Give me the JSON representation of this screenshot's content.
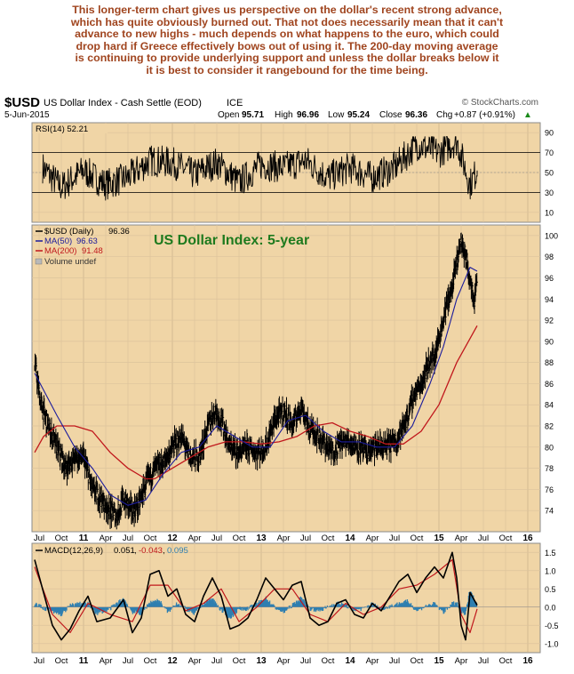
{
  "commentary": {
    "lines": [
      "This longer-term chart gives us perspective on the dollar's recent strong advance,",
      "which has quite obviously burned out. That not does necessarily mean that it can't",
      "advance to new highs - much depends on what happens to the euro, which could",
      "drop hard if Greece effectively bows out of using it. The 200-day moving average",
      "is continuing to provide underlying support and unless the dollar breaks below it",
      "it is best to consider it rangebound for the time being."
    ]
  },
  "colors": {
    "panel_bg": "#f0d5a6",
    "rsi_line": "#000000",
    "price_bars": "#000000",
    "ma50": "#1c1c9c",
    "ma200": "#c0171c",
    "title_green": "#1e7a1e",
    "macd_line": "#000000",
    "macd_signal": "#c0171c",
    "macd_hist": "#2f7fb0",
    "commentary": "#a0451f"
  },
  "header": {
    "symbol": "$USD",
    "name": "US Dollar Index - Cash Settle (EOD)",
    "exchange": "ICE",
    "watermark": "© StockCharts.com",
    "date": "5-Jun-2015",
    "open_label": "Open",
    "open": "95.71",
    "high_label": "High",
    "high": "96.96",
    "low_label": "Low",
    "low": "95.24",
    "close_label": "Close",
    "close": "96.36",
    "chg_label": "Chg",
    "chg": "+0.87 (+0.91%)",
    "chg_arrow": "▲"
  },
  "chart_data": [
    {
      "type": "line",
      "name": "RSI",
      "legend": "RSI(14) 52.21",
      "ylim": [
        0,
        100
      ],
      "yticks": [
        10,
        30,
        50,
        70,
        90
      ],
      "reference_lines": [
        30,
        70
      ],
      "series": [
        {
          "name": "RSI(14)",
          "x": [
            2010.54,
            2010.75,
            2011.0,
            2011.25,
            2011.5,
            2011.75,
            2012.0,
            2012.25,
            2012.5,
            2012.75,
            2013.0,
            2013.25,
            2013.5,
            2013.75,
            2014.0,
            2014.25,
            2014.5,
            2014.75,
            2015.0,
            2015.2,
            2015.35,
            2015.43
          ],
          "values": [
            55,
            35,
            52,
            38,
            45,
            62,
            60,
            48,
            60,
            40,
            58,
            55,
            62,
            45,
            55,
            45,
            55,
            78,
            70,
            82,
            38,
            52
          ]
        }
      ]
    },
    {
      "type": "bar",
      "name": "Price",
      "title": "US Dollar Index: 5-year",
      "legend": [
        {
          "name": "$USD (Daily)",
          "value": "96.36"
        },
        {
          "name": "MA(50)",
          "value": "96.63"
        },
        {
          "name": "MA(200)",
          "value": "91.48"
        },
        {
          "name": "Volume undef",
          "value": ""
        }
      ],
      "ylim": [
        72,
        101
      ],
      "yticks": [
        74,
        76,
        78,
        80,
        82,
        84,
        86,
        88,
        90,
        92,
        94,
        96,
        98,
        100
      ],
      "series": [
        {
          "name": "$USD (Daily)",
          "x": [
            2010.45,
            2010.52,
            2010.6,
            2010.7,
            2010.8,
            2010.9,
            2011.0,
            2011.1,
            2011.2,
            2011.3,
            2011.37,
            2011.45,
            2011.55,
            2011.62,
            2011.7,
            2011.8,
            2011.9,
            2012.0,
            2012.1,
            2012.2,
            2012.3,
            2012.4,
            2012.48,
            2012.55,
            2012.65,
            2012.75,
            2012.85,
            2012.95,
            2013.05,
            2013.15,
            2013.25,
            2013.35,
            2013.45,
            2013.52,
            2013.6,
            2013.7,
            2013.8,
            2013.9,
            2014.0,
            2014.1,
            2014.2,
            2014.3,
            2014.4,
            2014.5,
            2014.58,
            2014.65,
            2014.72,
            2014.8,
            2014.88,
            2014.95,
            2015.02,
            2015.1,
            2015.15,
            2015.2,
            2015.25,
            2015.3,
            2015.35,
            2015.4,
            2015.43
          ],
          "values": [
            88,
            84,
            82,
            80,
            78,
            79,
            79,
            76,
            75,
            74,
            73.5,
            75,
            74,
            74.5,
            76.5,
            78,
            78.5,
            80,
            81,
            79,
            79,
            82,
            83.5,
            82.5,
            80,
            79.5,
            80,
            79.5,
            80,
            82.5,
            83.5,
            82,
            84,
            82,
            81.5,
            80.5,
            79.5,
            80.5,
            80.5,
            80,
            79.5,
            80,
            80,
            80.5,
            81.5,
            83,
            85,
            86,
            88,
            88.5,
            91,
            94,
            95,
            97.5,
            99.5,
            98,
            96,
            94,
            96.36
          ]
        },
        {
          "name": "MA(50)",
          "x": [
            2010.45,
            2010.7,
            2010.9,
            2011.1,
            2011.3,
            2011.5,
            2011.7,
            2011.9,
            2012.1,
            2012.3,
            2012.5,
            2012.7,
            2012.9,
            2013.1,
            2013.3,
            2013.5,
            2013.7,
            2013.9,
            2014.1,
            2014.3,
            2014.5,
            2014.7,
            2014.9,
            2015.05,
            2015.2,
            2015.35,
            2015.43
          ],
          "values": [
            87,
            83,
            80,
            78,
            75.5,
            74.5,
            75,
            77.5,
            79.5,
            80,
            82,
            81,
            80,
            80,
            82.5,
            83,
            81.5,
            80.5,
            80.5,
            80,
            80,
            82,
            86,
            89.5,
            94,
            97,
            96.63
          ]
        },
        {
          "name": "MA(200)",
          "x": [
            2010.45,
            2010.55,
            2010.7,
            2010.9,
            2011.1,
            2011.3,
            2011.5,
            2011.7,
            2011.8,
            2012.0,
            2012.2,
            2012.4,
            2012.6,
            2012.8,
            2013.0,
            2013.2,
            2013.4,
            2013.6,
            2013.8,
            2014.0,
            2014.2,
            2014.4,
            2014.6,
            2014.8,
            2015.0,
            2015.2,
            2015.43
          ],
          "values": [
            79.5,
            81,
            82,
            82,
            81.5,
            79.5,
            78,
            77,
            77,
            78,
            79,
            80,
            80.5,
            80.5,
            80.3,
            80.5,
            81,
            82,
            82.3,
            81.5,
            81,
            80.3,
            80.3,
            81.5,
            84,
            88,
            91.48
          ]
        }
      ]
    },
    {
      "type": "line",
      "name": "MACD",
      "legend": [
        {
          "name": "MACD(12,26,9)",
          "value": "0.051"
        },
        {
          "name": "",
          "value": "-0.043"
        },
        {
          "name": "",
          "value": "0.095"
        }
      ],
      "ylim": [
        -1.25,
        1.75
      ],
      "yticks": [
        -1.0,
        -0.5,
        0.0,
        0.5,
        1.0,
        1.5
      ],
      "series": [
        {
          "name": "MACD(12,26,9)",
          "x": [
            2010.45,
            2010.55,
            2010.65,
            2010.75,
            2010.85,
            2010.95,
            2011.05,
            2011.15,
            2011.3,
            2011.45,
            2011.55,
            2011.65,
            2011.75,
            2011.85,
            2011.95,
            2012.05,
            2012.15,
            2012.25,
            2012.35,
            2012.45,
            2012.55,
            2012.65,
            2012.75,
            2012.85,
            2012.95,
            2013.05,
            2013.15,
            2013.25,
            2013.35,
            2013.45,
            2013.55,
            2013.65,
            2013.75,
            2013.85,
            2013.95,
            2014.05,
            2014.15,
            2014.25,
            2014.35,
            2014.45,
            2014.55,
            2014.65,
            2014.75,
            2014.85,
            2014.95,
            2015.05,
            2015.15,
            2015.2,
            2015.25,
            2015.3,
            2015.35,
            2015.43
          ],
          "values": [
            1.3,
            0.4,
            -0.5,
            -0.9,
            -0.6,
            -0.1,
            0.3,
            -0.4,
            -0.3,
            0.2,
            -0.7,
            -0.3,
            0.9,
            1.0,
            0.3,
            0.5,
            -0.2,
            -0.4,
            0.3,
            0.8,
            0.3,
            -0.6,
            -0.5,
            -0.3,
            0.2,
            0.8,
            0.5,
            0.2,
            0.6,
            0.7,
            -0.3,
            -0.5,
            -0.4,
            0.1,
            0.2,
            -0.2,
            -0.3,
            0.1,
            -0.1,
            0.3,
            0.7,
            0.9,
            0.4,
            0.8,
            1.1,
            0.8,
            1.5,
            0.8,
            -0.5,
            -0.9,
            0.4,
            0.05
          ]
        },
        {
          "name": "Signal",
          "x": [
            2010.45,
            2010.65,
            2010.85,
            2011.05,
            2011.3,
            2011.55,
            2011.75,
            2011.95,
            2012.15,
            2012.35,
            2012.55,
            2012.75,
            2012.95,
            2013.15,
            2013.35,
            2013.55,
            2013.75,
            2013.95,
            2014.15,
            2014.35,
            2014.55,
            2014.75,
            2014.95,
            2015.15,
            2015.25,
            2015.35,
            2015.43
          ],
          "values": [
            1.1,
            -0.2,
            -0.7,
            0.1,
            -0.2,
            -0.4,
            0.6,
            0.6,
            -0.1,
            0.1,
            0.5,
            -0.4,
            0.0,
            0.5,
            0.5,
            -0.2,
            -0.4,
            0.1,
            -0.2,
            0.0,
            0.5,
            0.6,
            0.9,
            1.3,
            -0.2,
            -0.7,
            -0.05
          ]
        }
      ]
    }
  ],
  "x_axis": {
    "ticks": [
      {
        "label": "Jul",
        "x": 2010.5,
        "major": false
      },
      {
        "label": "Oct",
        "x": 2010.75,
        "major": false
      },
      {
        "label": "11",
        "x": 2011.0,
        "major": true
      },
      {
        "label": "Apr",
        "x": 2011.25,
        "major": false
      },
      {
        "label": "Jul",
        "x": 2011.5,
        "major": false
      },
      {
        "label": "Oct",
        "x": 2011.75,
        "major": false
      },
      {
        "label": "12",
        "x": 2012.0,
        "major": true
      },
      {
        "label": "Apr",
        "x": 2012.25,
        "major": false
      },
      {
        "label": "Jul",
        "x": 2012.5,
        "major": false
      },
      {
        "label": "Oct",
        "x": 2012.75,
        "major": false
      },
      {
        "label": "13",
        "x": 2013.0,
        "major": true
      },
      {
        "label": "Apr",
        "x": 2013.25,
        "major": false
      },
      {
        "label": "Jul",
        "x": 2013.5,
        "major": false
      },
      {
        "label": "Oct",
        "x": 2013.75,
        "major": false
      },
      {
        "label": "14",
        "x": 2014.0,
        "major": true
      },
      {
        "label": "Apr",
        "x": 2014.25,
        "major": false
      },
      {
        "label": "Jul",
        "x": 2014.5,
        "major": false
      },
      {
        "label": "Oct",
        "x": 2014.75,
        "major": false
      },
      {
        "label": "15",
        "x": 2015.0,
        "major": true
      },
      {
        "label": "Apr",
        "x": 2015.25,
        "major": false
      },
      {
        "label": "Jul",
        "x": 2015.5,
        "major": false
      },
      {
        "label": "Oct",
        "x": 2015.75,
        "major": false
      },
      {
        "label": "16",
        "x": 2016.0,
        "major": true
      }
    ]
  }
}
